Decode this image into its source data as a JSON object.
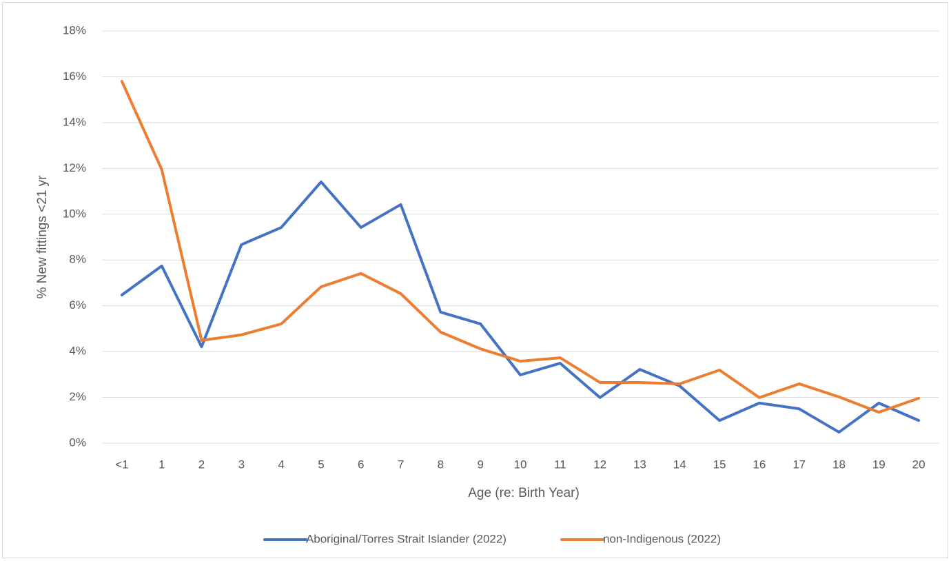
{
  "chart_data": {
    "type": "line",
    "x_label": "Age (re: Birth Year)",
    "y_label": "% New fittings <21 yr",
    "categories": [
      "<1",
      "1",
      "2",
      "3",
      "4",
      "5",
      "6",
      "7",
      "8",
      "9",
      "10",
      "11",
      "12",
      "13",
      "14",
      "15",
      "16",
      "17",
      "18",
      "19",
      "20"
    ],
    "series": [
      {
        "name": "Aboriginal/Torres Strait Islander (2022)",
        "color": "#4472c4",
        "values": [
          6.47,
          7.74,
          4.21,
          8.67,
          9.42,
          11.41,
          9.42,
          10.42,
          5.72,
          5.21,
          2.98,
          3.49,
          1.99,
          3.22,
          2.5,
          0.99,
          1.75,
          1.5,
          0.48,
          1.75,
          0.99
        ]
      },
      {
        "name": "non-Indigenous (2022)",
        "color": "#ed7d31",
        "values": [
          15.8,
          11.95,
          4.49,
          4.73,
          5.21,
          6.83,
          7.41,
          6.53,
          4.85,
          4.12,
          3.58,
          3.73,
          2.65,
          2.65,
          2.59,
          3.19,
          1.99,
          2.59,
          2.02,
          1.35,
          1.96
        ]
      }
    ],
    "ylim": [
      0,
      18
    ],
    "yticks": [
      {
        "value": 0,
        "label": "0%"
      },
      {
        "value": 2,
        "label": "2%"
      },
      {
        "value": 4,
        "label": "4%"
      },
      {
        "value": 6,
        "label": "6%"
      },
      {
        "value": 8,
        "label": "8%"
      },
      {
        "value": 10,
        "label": "10%"
      },
      {
        "value": 12,
        "label": "12%"
      },
      {
        "value": 14,
        "label": "14%"
      },
      {
        "value": 16,
        "label": "16%"
      },
      {
        "value": 18,
        "label": "18%"
      }
    ],
    "grid": true,
    "legend": "bottom"
  }
}
